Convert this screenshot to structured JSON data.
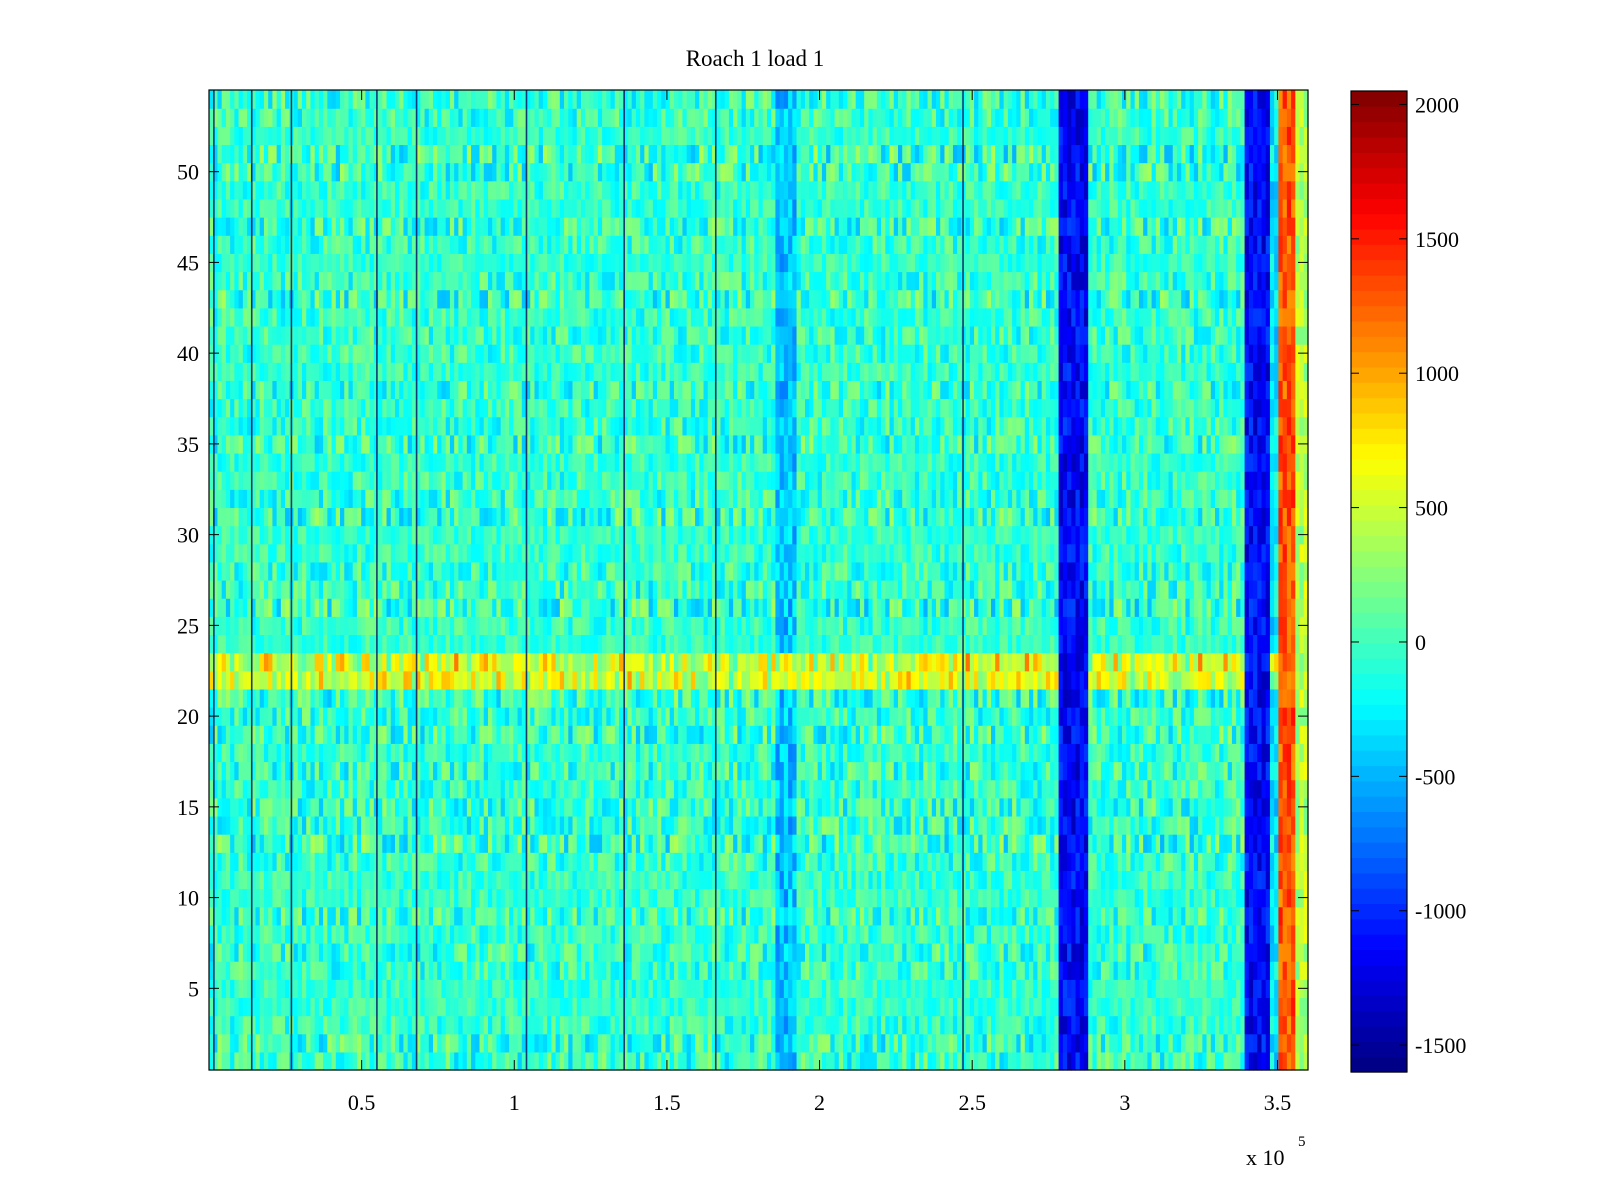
{
  "chart_data": {
    "type": "heatmap",
    "title": "Roach 1 load 1",
    "xlabel": "",
    "ylabel": "",
    "x_range": [
      0,
      360000
    ],
    "y_range": [
      0.5,
      54.5
    ],
    "x_ticks": [
      50000,
      100000,
      150000,
      200000,
      250000,
      300000,
      350000
    ],
    "x_tick_labels": [
      "0.5",
      "1",
      "1.5",
      "2",
      "2.5",
      "3",
      "3.5"
    ],
    "x_exponent_label": "x 10",
    "x_exponent": "5",
    "y_ticks": [
      5,
      10,
      15,
      20,
      25,
      30,
      35,
      40,
      45,
      50
    ],
    "y_tick_labels": [
      "5",
      "10",
      "15",
      "20",
      "25",
      "30",
      "35",
      "40",
      "45",
      "50"
    ],
    "rows": 54,
    "colorbar": {
      "colormap": "jet",
      "range": [
        -1600,
        2050
      ],
      "ticks": [
        -1500,
        -1000,
        -500,
        0,
        500,
        1000,
        1500,
        2000
      ],
      "tick_labels": [
        "-1500",
        "-1000",
        "-500",
        "0",
        "500",
        "1000",
        "1500",
        "2000"
      ]
    },
    "background_value": -50,
    "features": [
      {
        "kind": "column_band",
        "x_start": 278000,
        "x_end": 288000,
        "value": -1150
      },
      {
        "kind": "column_band",
        "x_start": 339000,
        "x_end": 348000,
        "value": -1150
      },
      {
        "kind": "column_band",
        "x_start": 348000,
        "x_end": 351000,
        "value": -300
      },
      {
        "kind": "column_band",
        "x_start": 351000,
        "x_end": 356000,
        "value": 1300
      },
      {
        "kind": "column_band",
        "x_start": 356000,
        "x_end": 360000,
        "value": 400
      },
      {
        "kind": "row_band",
        "y_start": 21.5,
        "y_end": 23.5,
        "value": 700
      },
      {
        "kind": "column_band",
        "x_start": 186000,
        "x_end": 192000,
        "value": -450
      }
    ],
    "dark_lines_x": [
      1600,
      14000,
      27000,
      55000,
      68000,
      104000,
      136000,
      166000,
      247000
    ]
  }
}
